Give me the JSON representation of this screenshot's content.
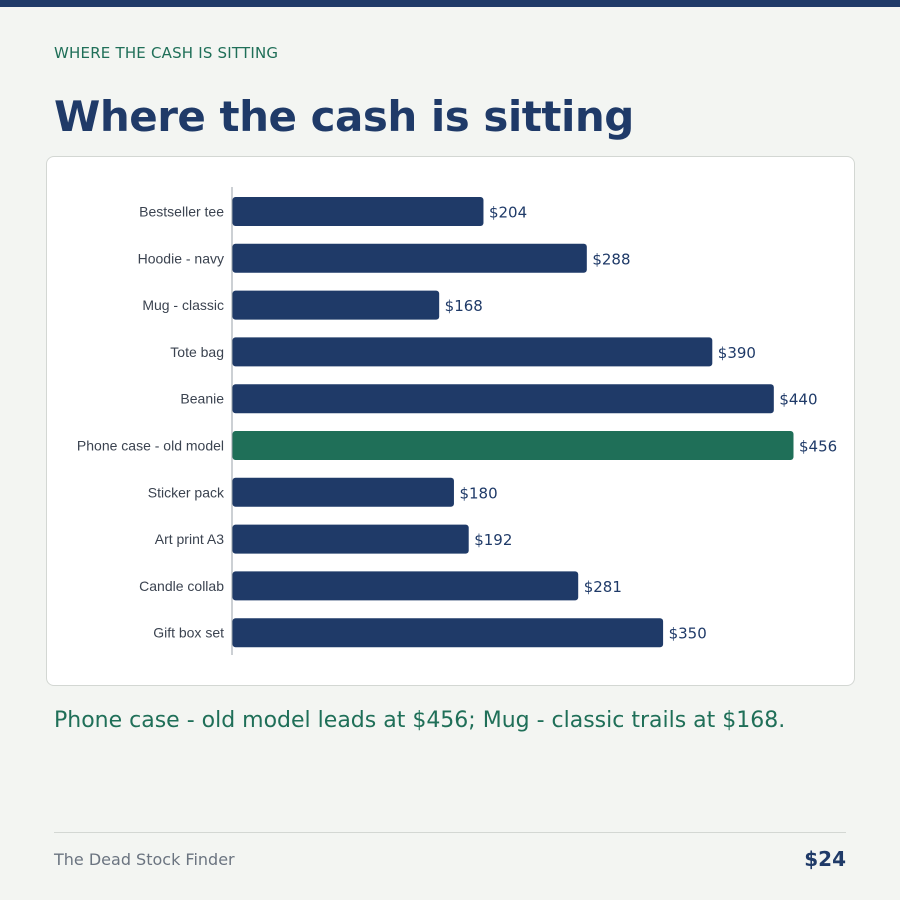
{
  "eyebrow": "WHERE THE CASH IS SITTING",
  "title": "Where the cash is sitting",
  "summary": "Phone case - old model leads at $456; Mug - classic trails at $168.",
  "footer": {
    "brand": "The Dead Stock Finder",
    "price": "$24"
  },
  "colors": {
    "bar": "#1f3a68",
    "highlight": "#1f6f58",
    "accent_text": "#1f6f58"
  },
  "chart_data": {
    "type": "bar",
    "orientation": "horizontal",
    "categories": [
      "Bestseller tee",
      "Hoodie - navy",
      "Mug - classic",
      "Tote bag",
      "Beanie",
      "Phone case - old model",
      "Sticker pack",
      "Art print A3",
      "Candle collab",
      "Gift box set"
    ],
    "values": [
      204,
      288,
      168,
      390,
      440,
      456,
      180,
      192,
      281,
      350
    ],
    "value_labels": [
      "$204",
      "$288",
      "$168",
      "$390",
      "$440",
      "$456",
      "$180",
      "$192",
      "$281",
      "$350"
    ],
    "highlight_index": 5,
    "xlim": [
      0,
      456
    ],
    "title": "",
    "xlabel": "",
    "ylabel": "",
    "grid": false
  }
}
